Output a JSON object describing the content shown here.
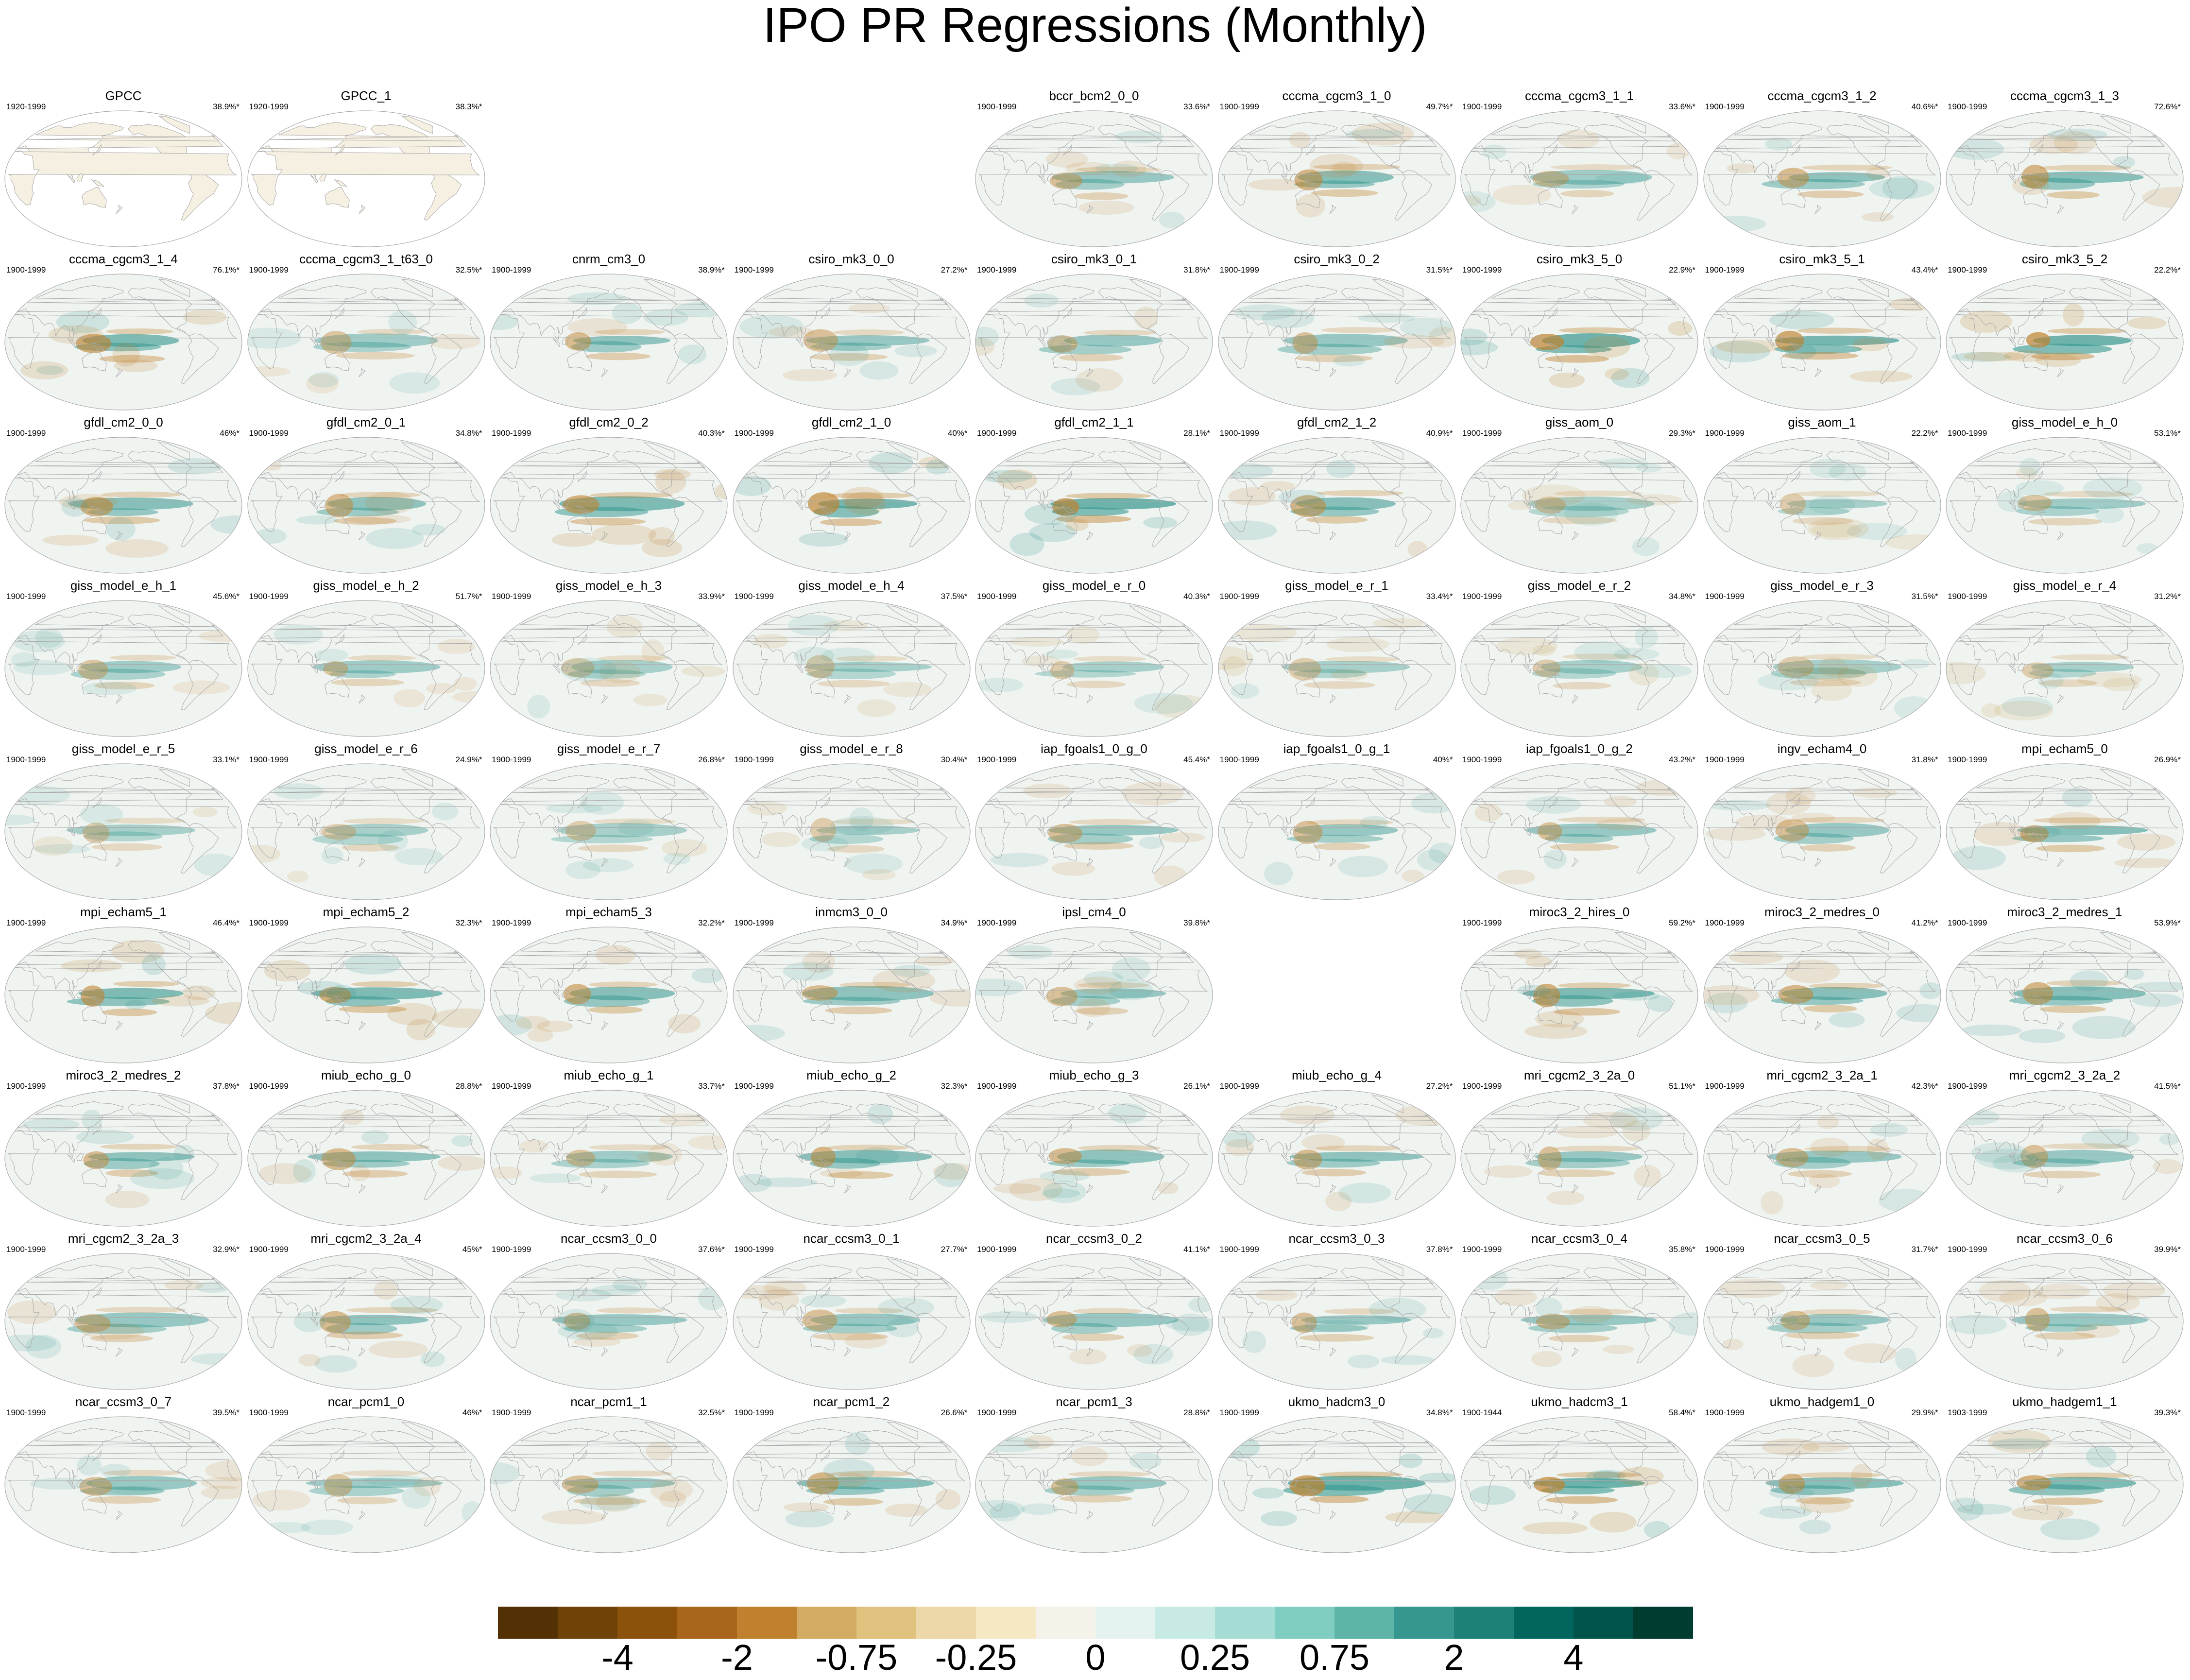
{
  "title": "IPO PR Regressions (Monthly)",
  "colorbar": {
    "colors": [
      "#543005",
      "#6f4208",
      "#8c510a",
      "#a8661c",
      "#bf812d",
      "#d3ab62",
      "#dfc27d",
      "#ecd8a8",
      "#f6e8c3",
      "#f5f2e9",
      "#e4f3f0",
      "#c7eae5",
      "#a5ddd4",
      "#80cdc1",
      "#5fb4a8",
      "#35978f",
      "#1d8178",
      "#01665e",
      "#00544b",
      "#003c30"
    ],
    "labels": [
      "-4",
      "-2",
      "-0.75",
      "-0.25",
      "0",
      "0.25",
      "0.75",
      "2",
      "4"
    ],
    "label_index": [
      2,
      4,
      6,
      8,
      10,
      12,
      14,
      16,
      18
    ]
  },
  "map_colors": {
    "ocean": "#f0f4f1",
    "land": "#f6f0e2",
    "coast": "#a9a9a9",
    "wet": "#35978f",
    "dry": "#bf812d",
    "outline": "#aaaaaa"
  },
  "panels": [
    {
      "name": "GPCC",
      "period": "1920-1999",
      "pct": "38.9%*",
      "row": 0,
      "col": 0,
      "obs": true,
      "amp": 0
    },
    {
      "name": "GPCC_1",
      "period": "1920-1999",
      "pct": "38.3%*",
      "row": 0,
      "col": 1,
      "obs": true,
      "amp": 0
    },
    {
      "name": "bccr_bcm2_0_0",
      "period": "1900-1999",
      "pct": "33.6%*",
      "row": 0,
      "col": 4,
      "amp": 0.5
    },
    {
      "name": "cccma_cgcm3_1_0",
      "period": "1900-1999",
      "pct": "49.7%*",
      "row": 0,
      "col": 5,
      "amp": 0.7
    },
    {
      "name": "cccma_cgcm3_1_1",
      "period": "1900-1999",
      "pct": "33.6%*",
      "row": 0,
      "col": 6,
      "amp": 0.4
    },
    {
      "name": "cccma_cgcm3_1_2",
      "period": "1900-1999",
      "pct": "40.6%*",
      "row": 0,
      "col": 7,
      "amp": 0.6
    },
    {
      "name": "cccma_cgcm3_1_3",
      "period": "1900-1999",
      "pct": "72.6%*",
      "row": 0,
      "col": 8,
      "amp": 0.7
    },
    {
      "name": "cccma_cgcm3_1_4",
      "period": "1900-1999",
      "pct": "76.1%*",
      "row": 1,
      "col": 0,
      "amp": 0.8
    },
    {
      "name": "cccma_cgcm3_1_t63_0",
      "period": "1900-1999",
      "pct": "32.5%*",
      "row": 1,
      "col": 1,
      "amp": 0.4
    },
    {
      "name": "cnrm_cm3_0",
      "period": "1900-1999",
      "pct": "38.9%*",
      "row": 1,
      "col": 2,
      "amp": 0.6
    },
    {
      "name": "csiro_mk3_0_0",
      "period": "1900-1999",
      "pct": "27.2%*",
      "row": 1,
      "col": 3,
      "amp": 0.5
    },
    {
      "name": "csiro_mk3_0_1",
      "period": "1900-1999",
      "pct": "31.8%*",
      "row": 1,
      "col": 4,
      "amp": 0.5
    },
    {
      "name": "csiro_mk3_0_2",
      "period": "1900-1999",
      "pct": "31.5%*",
      "row": 1,
      "col": 5,
      "amp": 0.5
    },
    {
      "name": "csiro_mk3_5_0",
      "period": "1900-1999",
      "pct": "22.9%*",
      "row": 1,
      "col": 6,
      "amp": 1.0
    },
    {
      "name": "csiro_mk3_5_1",
      "period": "1900-1999",
      "pct": "43.4%*",
      "row": 1,
      "col": 7,
      "amp": 0.9
    },
    {
      "name": "csiro_mk3_5_2",
      "period": "1900-1999",
      "pct": "22.2%*",
      "row": 1,
      "col": 8,
      "amp": 1.0
    },
    {
      "name": "gfdl_cm2_0_0",
      "period": "1900-1999",
      "pct": "46%*",
      "row": 2,
      "col": 0,
      "amp": 0.7
    },
    {
      "name": "gfdl_cm2_0_1",
      "period": "1900-1999",
      "pct": "34.8%*",
      "row": 2,
      "col": 1,
      "amp": 0.6
    },
    {
      "name": "gfdl_cm2_0_2",
      "period": "1900-1999",
      "pct": "40.3%*",
      "row": 2,
      "col": 2,
      "amp": 0.8
    },
    {
      "name": "gfdl_cm2_1_0",
      "period": "1900-1999",
      "pct": "40%*",
      "row": 2,
      "col": 3,
      "amp": 0.9
    },
    {
      "name": "gfdl_cm2_1_1",
      "period": "1900-1999",
      "pct": "28.1%*",
      "row": 2,
      "col": 4,
      "amp": 1.0
    },
    {
      "name": "gfdl_cm2_1_2",
      "period": "1900-1999",
      "pct": "40.9%*",
      "row": 2,
      "col": 5,
      "amp": 0.7
    },
    {
      "name": "giss_aom_0",
      "period": "1900-1999",
      "pct": "29.3%*",
      "row": 2,
      "col": 6,
      "amp": 0.3
    },
    {
      "name": "giss_aom_1",
      "period": "1900-1999",
      "pct": "22.2%*",
      "row": 2,
      "col": 7,
      "amp": 0.3
    },
    {
      "name": "giss_model_e_h_0",
      "period": "1900-1999",
      "pct": "53.1%*",
      "row": 2,
      "col": 8,
      "amp": 0.4
    },
    {
      "name": "giss_model_e_h_1",
      "period": "1900-1999",
      "pct": "45.6%*",
      "row": 3,
      "col": 0,
      "amp": 0.4
    },
    {
      "name": "giss_model_e_h_2",
      "period": "1900-1999",
      "pct": "51.7%*",
      "row": 3,
      "col": 1,
      "amp": 0.4
    },
    {
      "name": "giss_model_e_h_3",
      "period": "1900-1999",
      "pct": "33.9%*",
      "row": 3,
      "col": 2,
      "amp": 0.3
    },
    {
      "name": "giss_model_e_h_4",
      "period": "1900-1999",
      "pct": "37.5%*",
      "row": 3,
      "col": 3,
      "amp": 0.3
    },
    {
      "name": "giss_model_e_r_0",
      "period": "1900-1999",
      "pct": "40.3%*",
      "row": 3,
      "col": 4,
      "amp": 0.3
    },
    {
      "name": "giss_model_e_r_1",
      "period": "1900-1999",
      "pct": "33.4%*",
      "row": 3,
      "col": 5,
      "amp": 0.3
    },
    {
      "name": "giss_model_e_r_2",
      "period": "1900-1999",
      "pct": "34.8%*",
      "row": 3,
      "col": 6,
      "amp": 0.3
    },
    {
      "name": "giss_model_e_r_3",
      "period": "1900-1999",
      "pct": "31.5%*",
      "row": 3,
      "col": 7,
      "amp": 0.3
    },
    {
      "name": "giss_model_e_r_4",
      "period": "1900-1999",
      "pct": "31.2%*",
      "row": 3,
      "col": 8,
      "amp": 0.3
    },
    {
      "name": "giss_model_e_r_5",
      "period": "1900-1999",
      "pct": "33.1%*",
      "row": 4,
      "col": 0,
      "amp": 0.3
    },
    {
      "name": "giss_model_e_r_6",
      "period": "1900-1999",
      "pct": "24.9%*",
      "row": 4,
      "col": 1,
      "amp": 0.3
    },
    {
      "name": "giss_model_e_r_7",
      "period": "1900-1999",
      "pct": "26.8%*",
      "row": 4,
      "col": 2,
      "amp": 0.3
    },
    {
      "name": "giss_model_e_r_8",
      "period": "1900-1999",
      "pct": "30.4%*",
      "row": 4,
      "col": 3,
      "amp": 0.3
    },
    {
      "name": "iap_fgoals1_0_g_0",
      "period": "1900-1999",
      "pct": "45.4%*",
      "row": 4,
      "col": 4,
      "amp": 0.5
    },
    {
      "name": "iap_fgoals1_0_g_1",
      "period": "1900-1999",
      "pct": "40%*",
      "row": 4,
      "col": 5,
      "amp": 0.5
    },
    {
      "name": "iap_fgoals1_0_g_2",
      "period": "1900-1999",
      "pct": "43.2%*",
      "row": 4,
      "col": 6,
      "amp": 0.5
    },
    {
      "name": "ingv_echam4_0",
      "period": "1900-1999",
      "pct": "31.8%*",
      "row": 4,
      "col": 7,
      "amp": 0.5
    },
    {
      "name": "mpi_echam5_0",
      "period": "1900-1999",
      "pct": "26.9%*",
      "row": 4,
      "col": 8,
      "amp": 0.7
    },
    {
      "name": "mpi_echam5_1",
      "period": "1900-1999",
      "pct": "46.4%*",
      "row": 5,
      "col": 0,
      "amp": 0.8
    },
    {
      "name": "mpi_echam5_2",
      "period": "1900-1999",
      "pct": "32.3%*",
      "row": 5,
      "col": 1,
      "amp": 0.8
    },
    {
      "name": "mpi_echam5_3",
      "period": "1900-1999",
      "pct": "32.2%*",
      "row": 5,
      "col": 2,
      "amp": 0.7
    },
    {
      "name": "inmcm3_0_0",
      "period": "1900-1999",
      "pct": "34.9%*",
      "row": 5,
      "col": 3,
      "amp": 0.6
    },
    {
      "name": "ipsl_cm4_0",
      "period": "1900-1999",
      "pct": "39.8%*",
      "row": 5,
      "col": 4,
      "amp": 0.5
    },
    {
      "name": "miroc3_2_hires_0",
      "period": "1900-1999",
      "pct": "59.2%*",
      "row": 5,
      "col": 6,
      "amp": 0.8
    },
    {
      "name": "miroc3_2_medres_0",
      "period": "1900-1999",
      "pct": "41.2%*",
      "row": 5,
      "col": 7,
      "amp": 0.7
    },
    {
      "name": "miroc3_2_medres_1",
      "period": "1900-1999",
      "pct": "53.9%*",
      "row": 5,
      "col": 8,
      "amp": 0.7
    },
    {
      "name": "miroc3_2_medres_2",
      "period": "1900-1999",
      "pct": "37.8%*",
      "row": 6,
      "col": 0,
      "amp": 0.6
    },
    {
      "name": "miub_echo_g_0",
      "period": "1900-1999",
      "pct": "28.8%*",
      "row": 6,
      "col": 1,
      "amp": 0.6
    },
    {
      "name": "miub_echo_g_1",
      "period": "1900-1999",
      "pct": "33.7%*",
      "row": 6,
      "col": 2,
      "amp": 0.4
    },
    {
      "name": "miub_echo_g_2",
      "period": "1900-1999",
      "pct": "32.3%*",
      "row": 6,
      "col": 3,
      "amp": 0.7
    },
    {
      "name": "miub_echo_g_3",
      "period": "1900-1999",
      "pct": "26.1%*",
      "row": 6,
      "col": 4,
      "amp": 0.6
    },
    {
      "name": "miub_echo_g_4",
      "period": "1900-1999",
      "pct": "27.2%*",
      "row": 6,
      "col": 5,
      "amp": 0.6
    },
    {
      "name": "mri_cgcm2_3_2a_0",
      "period": "1900-1999",
      "pct": "51.1%*",
      "row": 6,
      "col": 6,
      "amp": 0.5
    },
    {
      "name": "mri_cgcm2_3_2a_1",
      "period": "1900-1999",
      "pct": "42.3%*",
      "row": 6,
      "col": 7,
      "amp": 0.5
    },
    {
      "name": "mri_cgcm2_3_2a_2",
      "period": "1900-1999",
      "pct": "41.5%*",
      "row": 6,
      "col": 8,
      "amp": 0.5
    },
    {
      "name": "mri_cgcm2_3_2a_3",
      "period": "1900-1999",
      "pct": "32.9%*",
      "row": 7,
      "col": 0,
      "amp": 0.5
    },
    {
      "name": "mri_cgcm2_3_2a_4",
      "period": "1900-1999",
      "pct": "45%*",
      "row": 7,
      "col": 1,
      "amp": 0.6
    },
    {
      "name": "ncar_ccsm3_0_0",
      "period": "1900-1999",
      "pct": "37.6%*",
      "row": 7,
      "col": 2,
      "amp": 0.5
    },
    {
      "name": "ncar_ccsm3_0_1",
      "period": "1900-1999",
      "pct": "27.7%*",
      "row": 7,
      "col": 3,
      "amp": 0.5
    },
    {
      "name": "ncar_ccsm3_0_2",
      "period": "1900-1999",
      "pct": "41.1%*",
      "row": 7,
      "col": 4,
      "amp": 0.5
    },
    {
      "name": "ncar_ccsm3_0_3",
      "period": "1900-1999",
      "pct": "37.8%*",
      "row": 7,
      "col": 5,
      "amp": 0.5
    },
    {
      "name": "ncar_ccsm3_0_4",
      "period": "1900-1999",
      "pct": "35.8%*",
      "row": 7,
      "col": 6,
      "amp": 0.5
    },
    {
      "name": "ncar_ccsm3_0_5",
      "period": "1900-1999",
      "pct": "31.7%*",
      "row": 7,
      "col": 7,
      "amp": 0.5
    },
    {
      "name": "ncar_ccsm3_0_6",
      "period": "1900-1999",
      "pct": "39.9%*",
      "row": 7,
      "col": 8,
      "amp": 0.5
    },
    {
      "name": "ncar_ccsm3_0_7",
      "period": "1900-1999",
      "pct": "39.5%*",
      "row": 8,
      "col": 0,
      "amp": 0.5
    },
    {
      "name": "ncar_pcm1_0",
      "period": "1900-1999",
      "pct": "46%*",
      "row": 8,
      "col": 1,
      "amp": 0.4
    },
    {
      "name": "ncar_pcm1_1",
      "period": "1900-1999",
      "pct": "32.5%*",
      "row": 8,
      "col": 2,
      "amp": 0.5
    },
    {
      "name": "ncar_pcm1_2",
      "period": "1900-1999",
      "pct": "26.6%*",
      "row": 8,
      "col": 3,
      "amp": 0.7
    },
    {
      "name": "ncar_pcm1_3",
      "period": "1900-1999",
      "pct": "28.8%*",
      "row": 8,
      "col": 4,
      "amp": 0.5
    },
    {
      "name": "ukmo_hadcm3_0",
      "period": "1900-1999",
      "pct": "34.8%*",
      "row": 8,
      "col": 5,
      "amp": 1.0
    },
    {
      "name": "ukmo_hadcm3_1",
      "period": "1900-1944",
      "pct": "58.4%*",
      "row": 8,
      "col": 6,
      "amp": 1.0
    },
    {
      "name": "ukmo_hadgem1_0",
      "period": "1900-1999",
      "pct": "29.9%*",
      "row": 8,
      "col": 7,
      "amp": 0.7
    },
    {
      "name": "ukmo_hadgem1_1",
      "period": "1903-1999",
      "pct": "39.3%*",
      "row": 8,
      "col": 8,
      "amp": 0.8
    }
  ]
}
